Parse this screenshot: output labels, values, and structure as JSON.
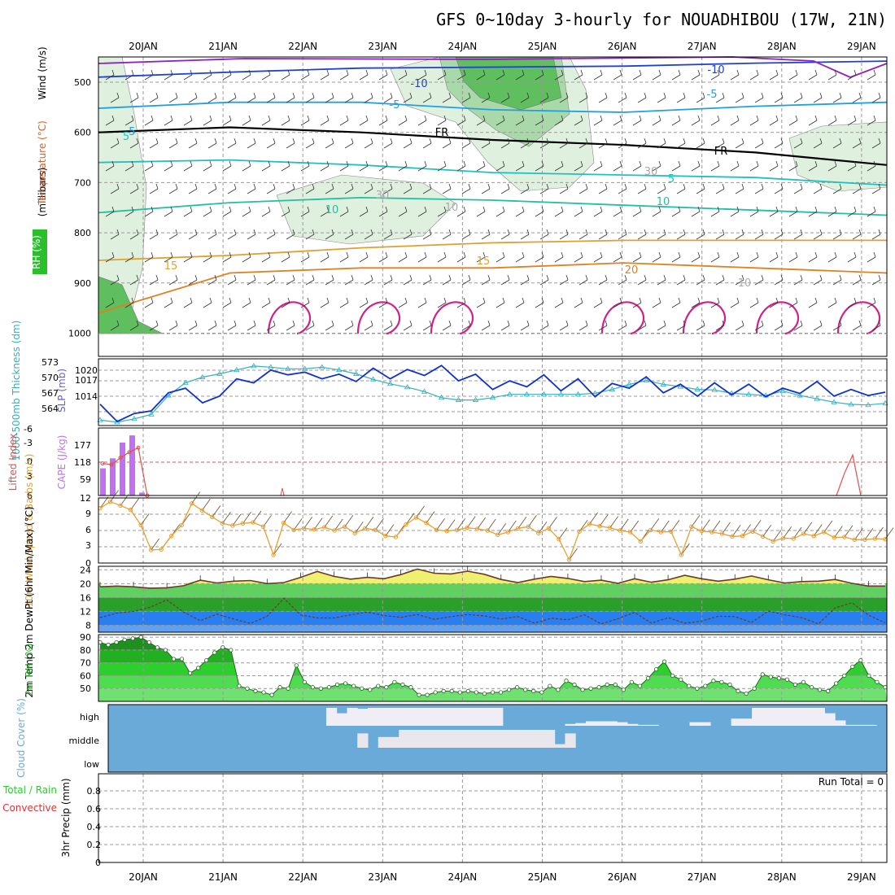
{
  "title": "GFS 0~10day 3-hourly for NOUADHIBOU (17W, 21N)",
  "dates": [
    "20JAN",
    "21JAN",
    "22JAN",
    "23JAN",
    "24JAN",
    "25JAN",
    "26JAN",
    "27JAN",
    "28JAN",
    "29JAN"
  ],
  "colors": {
    "rh_dark": "#5fbf5f",
    "rh_mid": "#a9d8a9",
    "rh_light": "#dff0df",
    "cape_bar": "#c070f0",
    "lifted": "#e05050",
    "wind10": "#e8a030",
    "cloud": "#6aaad8",
    "cloud_gap": "#f0eef4",
    "rh2m_dark": "#1f8f1f",
    "rh2m_mid": "#2ccf2c",
    "rh2m_light": "#70e070",
    "temp_yellow": "#f0f070",
    "temp_lgreen": "#60d060",
    "temp_dgreen": "#2aa02a",
    "temp_blue": "#2a7ff0",
    "temp_lblue": "#60a0f0",
    "slp": "#1030d0",
    "thickness": "#30b0c0"
  },
  "chart_data": [
    {
      "type": "contour",
      "panel": "upper-air",
      "title": "",
      "ylabel": "(millibars)",
      "ylim": [
        1000,
        450
      ],
      "yticks": [
        500,
        600,
        700,
        800,
        900,
        1000
      ],
      "legend": [
        "Wind (m/s)",
        "Temperature (°C)",
        "RH (%)"
      ],
      "temperature_labels": [
        "-10",
        "-10",
        "-5",
        "-5",
        "-5",
        "5",
        "5",
        "10",
        "10",
        "15",
        "15",
        "20"
      ],
      "freezing_labels": [
        "FR",
        "FR"
      ],
      "rh_labels": [
        "30",
        "30",
        "10",
        "10"
      ],
      "temperature_isotherms": [
        {
          "value": -10,
          "pressure": [
            490,
            480,
            472,
            470,
            468,
            462,
            458
          ]
        },
        {
          "value": -5,
          "pressure": [
            552,
            540,
            540,
            555,
            560,
            548,
            540
          ]
        },
        {
          "value": 0,
          "pressure": [
            600,
            590,
            600,
            615,
            625,
            640,
            665
          ]
        },
        {
          "value": 5,
          "pressure": [
            660,
            655,
            665,
            680,
            685,
            690,
            705
          ]
        },
        {
          "value": 10,
          "pressure": [
            760,
            740,
            730,
            735,
            745,
            755,
            765
          ]
        },
        {
          "value": 15,
          "pressure": [
            855,
            845,
            830,
            820,
            815,
            815,
            815
          ]
        },
        {
          "value": 20,
          "pressure": [
            960,
            880,
            870,
            870,
            860,
            870,
            880
          ]
        }
      ]
    },
    {
      "type": "line",
      "panel": "slp-thickness",
      "ylabel_left": "1000-500mb Thickness (dm)",
      "ylabel_right": "SLP (mb)",
      "left_ticks": [
        "573",
        "570",
        "567",
        "564"
      ],
      "right_ticks": [
        "1020",
        "1017",
        "1014"
      ],
      "left_range": [
        562,
        574
      ],
      "right_range": [
        1012,
        1022
      ],
      "series": [
        {
          "name": "SLP",
          "axis": "right",
          "values": [
            1015.2,
            1012.6,
            1013.8,
            1014.2,
            1016.9,
            1017.6,
            1015.4,
            1016.4,
            1019.0,
            1018.4,
            1020.3,
            1019.6,
            1020.0,
            1019.0,
            1019.7,
            1018.6,
            1020.6,
            1019.0,
            1020.4,
            1019.5,
            1021.0,
            1018.7,
            1019.7,
            1017.4,
            1018.7,
            1017.8,
            1019.6,
            1017.2,
            1019.0,
            1016.3,
            1018.3,
            1017.6,
            1019.3,
            1016.9,
            1018.2,
            1016.4,
            1018.4,
            1016.6,
            1018.2,
            1016.3,
            1017.6,
            1016.8,
            1018.6,
            1016.4,
            1017.4,
            1016.5,
            1017.0
          ]
        },
        {
          "name": "1000-500mb Thickness",
          "axis": "left",
          "values": [
            563.0,
            562.6,
            563.2,
            564.0,
            567.4,
            569.7,
            570.7,
            571.3,
            572.0,
            572.7,
            572.5,
            572.2,
            572.2,
            572.5,
            572.0,
            571.3,
            570.3,
            569.5,
            568.9,
            568.1,
            567.0,
            566.6,
            566.6,
            567.0,
            567.6,
            567.6,
            567.6,
            567.6,
            567.6,
            567.8,
            568.5,
            569.4,
            570.1,
            569.4,
            569.0,
            568.5,
            568.4,
            567.8,
            567.6,
            567.4,
            568.2,
            567.4,
            566.8,
            566.2,
            565.8,
            565.7,
            566.0
          ]
        }
      ]
    },
    {
      "type": "bar+line",
      "panel": "cape-lifted-index",
      "ylabel_left": "Lifted Index",
      "ylabel_right": "CAPE (J/kg)",
      "li_ticks": [
        "-6",
        "-3",
        "0",
        "3",
        "6"
      ],
      "cape_ticks": [
        "177",
        "118",
        "59"
      ],
      "cape_values": [
        95,
        130,
        185,
        210,
        10
      ],
      "lifted_index": [
        0.3,
        0.5,
        -0.7,
        -1.7,
        -2.5,
        6.0
      ],
      "lifted_index_late": [
        6.0,
        2.0,
        -1.2,
        6.0
      ]
    },
    {
      "type": "line",
      "panel": "wind10m",
      "ylabel": "10m Wind Speed & Barbs (m/s)",
      "ylim": [
        0,
        12
      ],
      "ticks": [
        "12",
        "9",
        "6",
        "3",
        "0"
      ],
      "values": [
        10.1,
        11.3,
        10.6,
        9.8,
        7.0,
        2.4,
        2.5,
        5.0,
        7.0,
        11.0,
        9.7,
        8.5,
        7.3,
        6.9,
        7.3,
        7.5,
        6.7,
        1.5,
        7.4,
        6.1,
        6.4,
        6.2,
        6.6,
        6.0,
        6.7,
        5.5,
        6.4,
        6.1,
        5.0,
        4.8,
        7.1,
        8.4,
        7.4,
        6.1,
        5.9,
        6.1,
        6.5,
        6.3,
        6.0,
        5.2,
        5.7,
        6.4,
        6.7,
        5.5,
        6.4,
        4.4,
        0.6,
        5.8,
        7.2,
        6.8,
        6.5,
        6.0,
        5.7,
        4.0,
        6.1,
        5.7,
        5.8,
        1.5,
        6.7,
        5.9,
        5.7,
        5.4,
        4.9,
        5.0,
        5.8,
        4.9,
        4.0,
        4.6,
        4.5,
        5.4,
        5.0,
        5.7,
        4.7,
        4.8,
        4.3,
        4.3,
        4.5,
        4.4
      ]
    },
    {
      "type": "area",
      "panel": "temp2m",
      "ylabel": "2m Temp 2m DewPt (6hr Min/Max) (°C)",
      "ylim": [
        6,
        25
      ],
      "ticks": [
        "24",
        "20",
        "16",
        "12",
        "8"
      ],
      "temp": [
        19.1,
        19.3,
        19.1,
        18.7,
        18.8,
        19.4,
        21.0,
        20.2,
        20.7,
        20.9,
        20.0,
        20.3,
        21.8,
        23.5,
        22.1,
        21.3,
        21.8,
        21.4,
        22.6,
        24.2,
        23.0,
        22.8,
        23.6,
        22.7,
        21.2,
        20.3,
        21.3,
        22.1,
        21.5,
        20.6,
        21.0,
        20.1,
        21.4,
        20.4,
        21.1,
        22.4,
        21.4,
        20.7,
        21.3,
        22.2,
        21.1,
        20.2,
        20.6,
        20.7,
        21.2,
        20.1,
        19.3,
        19.3
      ],
      "dewpt": [
        10.2,
        11.5,
        12.0,
        13.2,
        15.3,
        11.8,
        9.3,
        11.2,
        9.8,
        8.5,
        10.6,
        15.8,
        11.0,
        10.1,
        10.1,
        11.0,
        11.8,
        10.8,
        10.3,
        11.1,
        9.7,
        10.5,
        11.1,
        10.7,
        9.8,
        10.5,
        8.6,
        10.0,
        9.6,
        11.0,
        8.4,
        9.9,
        11.7,
        8.6,
        10.2,
        8.6,
        9.2,
        10.6,
        10.5,
        8.8,
        12.1,
        11.0,
        10.2,
        8.4,
        13.0,
        14.5,
        10.9,
        8.7
      ]
    },
    {
      "type": "area",
      "panel": "rh2m",
      "ylabel": "2m RH (%)",
      "ylim": [
        40,
        92
      ],
      "ticks": [
        "90",
        "80",
        "70",
        "60",
        "50"
      ],
      "values": [
        86,
        84,
        86,
        88,
        89,
        90,
        86,
        82,
        80,
        73,
        73,
        62,
        66,
        72,
        78,
        82,
        80,
        52,
        50,
        48,
        47,
        45,
        51,
        50,
        68,
        55,
        51,
        50,
        51,
        53,
        54,
        52,
        50,
        49,
        52,
        51,
        55,
        53,
        51,
        45,
        45,
        47,
        48,
        48,
        47,
        48,
        47,
        46,
        47,
        47,
        49,
        51,
        49,
        48,
        47,
        52,
        49,
        56,
        53,
        49,
        50,
        51,
        53,
        53,
        49,
        55,
        52,
        58,
        65,
        71,
        60,
        57,
        52,
        50,
        52,
        56,
        55,
        53,
        48,
        46,
        50,
        61,
        59,
        58,
        57,
        53,
        55,
        51,
        49,
        48,
        54,
        60,
        67,
        72,
        60,
        55,
        51
      ]
    },
    {
      "type": "heatmap",
      "panel": "cloud-cover",
      "ylabel": "Cloud Cover (%)",
      "levels": [
        "high",
        "middle",
        "low"
      ],
      "clear_high_pct": [
        0,
        0,
        0,
        0,
        0,
        0,
        0,
        0,
        0,
        0,
        0,
        0,
        0,
        0,
        0,
        0,
        0,
        0,
        0,
        0,
        0,
        100,
        70,
        100,
        95,
        100,
        100,
        100,
        100,
        100,
        100,
        100,
        100,
        100,
        100,
        100,
        100,
        100,
        0,
        0,
        0,
        0,
        0,
        0,
        10,
        15,
        25,
        25,
        25,
        20,
        10,
        5,
        5,
        0,
        0,
        0,
        20,
        20,
        0,
        0,
        40,
        40,
        100,
        100,
        100,
        100,
        100,
        100,
        100,
        70,
        30,
        5,
        5,
        5,
        0
      ],
      "clear_mid_pct": [
        0,
        0,
        0,
        0,
        0,
        0,
        0,
        0,
        0,
        0,
        0,
        0,
        0,
        0,
        0,
        0,
        0,
        0,
        0,
        0,
        0,
        0,
        0,
        0,
        80,
        0,
        60,
        60,
        100,
        100,
        100,
        100,
        100,
        100,
        100,
        100,
        100,
        100,
        100,
        100,
        100,
        100,
        100,
        20,
        80,
        0,
        0,
        0,
        0,
        0,
        0,
        0,
        0,
        0,
        0,
        0,
        0,
        0,
        0,
        0,
        0,
        0,
        0,
        0,
        0,
        0,
        0,
        0,
        0,
        0,
        0,
        0,
        0,
        0,
        0
      ],
      "clear_low_pct": []
    },
    {
      "type": "bar",
      "panel": "precip",
      "ylabel": "3hr Precip (mm)",
      "legend": [
        "Total / Rain",
        "Convective"
      ],
      "ylim": [
        0,
        1
      ],
      "ticks": [
        "0.8",
        "0.6",
        "0.4",
        "0.2",
        "0"
      ],
      "annotation": "Run Total = 0",
      "values": []
    }
  ]
}
